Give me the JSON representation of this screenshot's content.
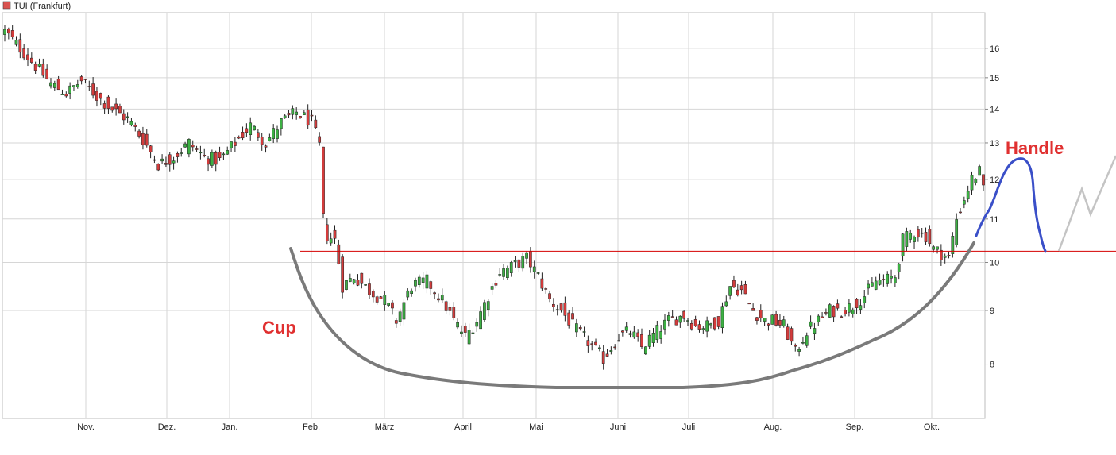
{
  "chart_data": {
    "type": "candlestick",
    "legend": {
      "label": "TUI (Frankfurt)",
      "color": "#d9534f",
      "placement": "top-left"
    },
    "x_ticks": [
      "Nov.",
      "Dez.",
      "Jan.",
      "Feb.",
      "März",
      "April",
      "Mai",
      "Juni",
      "Juli",
      "Aug.",
      "Sep.",
      "Okt."
    ],
    "y_ticks": [
      8,
      9,
      10,
      11,
      12,
      13,
      14,
      15,
      16
    ],
    "y_scale": "log",
    "ylim": [
      7.1,
      17.3
    ],
    "grid": true,
    "up_color": "#3cb043",
    "down_color": "#d33c3c",
    "resistance": {
      "value": 10.25,
      "color": "#d40000"
    },
    "annotations": [
      {
        "text": "Cup",
        "color": "#e03030"
      },
      {
        "text": "Handle",
        "color": "#e03030"
      }
    ],
    "cup_curve_color": "#7a7a7a",
    "handle_curve_color": "#3a4fc8",
    "projection_color": "#c4c4c4",
    "close_path": [
      [
        0,
        16.6
      ],
      [
        4,
        16.0
      ],
      [
        8,
        15.4
      ],
      [
        12,
        14.8
      ],
      [
        16,
        14.5
      ],
      [
        20,
        14.9
      ],
      [
        24,
        14.4
      ],
      [
        28,
        14.0
      ],
      [
        32,
        13.7
      ],
      [
        36,
        13.1
      ],
      [
        40,
        12.4
      ],
      [
        44,
        12.6
      ],
      [
        48,
        13.0
      ],
      [
        52,
        12.6
      ],
      [
        56,
        12.5
      ],
      [
        60,
        13.0
      ],
      [
        64,
        13.5
      ],
      [
        68,
        13.0
      ],
      [
        72,
        13.6
      ],
      [
        76,
        13.9
      ],
      [
        80,
        13.6
      ],
      [
        82,
        12.9
      ],
      [
        83,
        11.0
      ],
      [
        84,
        10.6
      ],
      [
        86,
        10.5
      ],
      [
        88,
        9.5
      ],
      [
        91,
        9.7
      ],
      [
        95,
        9.4
      ],
      [
        99,
        9.2
      ],
      [
        102,
        8.8
      ],
      [
        106,
        9.5
      ],
      [
        110,
        9.6
      ],
      [
        114,
        9.2
      ],
      [
        117,
        8.8
      ],
      [
        120,
        8.5
      ],
      [
        123,
        8.8
      ],
      [
        126,
        9.3
      ],
      [
        129,
        9.8
      ],
      [
        132,
        9.9
      ],
      [
        136,
        10.1
      ],
      [
        139,
        9.7
      ],
      [
        142,
        9.2
      ],
      [
        145,
        9.0
      ],
      [
        148,
        8.7
      ],
      [
        152,
        8.4
      ],
      [
        156,
        8.1
      ],
      [
        160,
        8.5
      ],
      [
        163,
        8.6
      ],
      [
        166,
        8.3
      ],
      [
        170,
        8.6
      ],
      [
        173,
        8.8
      ],
      [
        177,
        8.9
      ],
      [
        180,
        8.7
      ],
      [
        183,
        8.7
      ],
      [
        186,
        8.8
      ],
      [
        189,
        9.5
      ],
      [
        192,
        9.4
      ],
      [
        195,
        9.0
      ],
      [
        198,
        8.8
      ],
      [
        200,
        8.8
      ],
      [
        203,
        8.7
      ],
      [
        206,
        8.2
      ],
      [
        209,
        8.6
      ],
      [
        212,
        8.8
      ],
      [
        215,
        9.0
      ],
      [
        218,
        9.0
      ],
      [
        221,
        9.1
      ],
      [
        224,
        9.3
      ],
      [
        227,
        9.6
      ],
      [
        229,
        9.6
      ],
      [
        232,
        9.7
      ],
      [
        234,
        10.5
      ],
      [
        237,
        10.7
      ],
      [
        240,
        10.6
      ],
      [
        242,
        10.3
      ],
      [
        244,
        10.2
      ],
      [
        246,
        10.1
      ],
      [
        248,
        11.0
      ],
      [
        250,
        11.5
      ],
      [
        252,
        12.0
      ],
      [
        254,
        12.2
      ],
      [
        255,
        11.7
      ]
    ]
  }
}
